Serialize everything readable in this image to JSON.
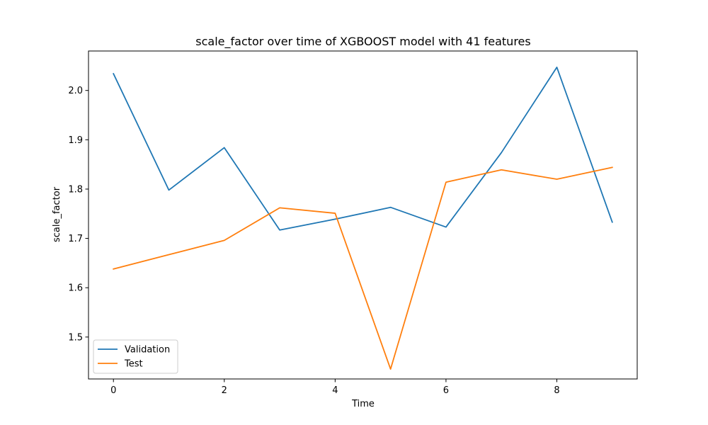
{
  "chart_data": {
    "type": "line",
    "title": "scale_factor over time of XGBOOST model with 41 features",
    "xlabel": "Time",
    "ylabel": "scale_factor",
    "xlim": [
      -0.45,
      9.45
    ],
    "ylim": [
      1.415,
      2.08
    ],
    "x": [
      0,
      1,
      2,
      3,
      4,
      5,
      6,
      7,
      8,
      9
    ],
    "xticks": [
      0,
      2,
      4,
      6,
      8
    ],
    "xtick_labels": [
      "0",
      "2",
      "4",
      "6",
      "8"
    ],
    "yticks": [
      1.5,
      1.6,
      1.7,
      1.8,
      1.9,
      2.0
    ],
    "ytick_labels": [
      "1.5",
      "1.6",
      "1.7",
      "1.8",
      "1.9",
      "2.0"
    ],
    "grid": false,
    "legend_position": "lower-left",
    "series": [
      {
        "name": "Validation",
        "color": "#1f77b4",
        "values": [
          2.034,
          1.798,
          1.884,
          1.717,
          1.739,
          1.763,
          1.723,
          1.874,
          2.047,
          1.733
        ]
      },
      {
        "name": "Test",
        "color": "#ff7f0e",
        "values": [
          1.638,
          1.667,
          1.696,
          1.762,
          1.751,
          1.435,
          1.814,
          1.839,
          1.82,
          1.844
        ]
      }
    ]
  }
}
